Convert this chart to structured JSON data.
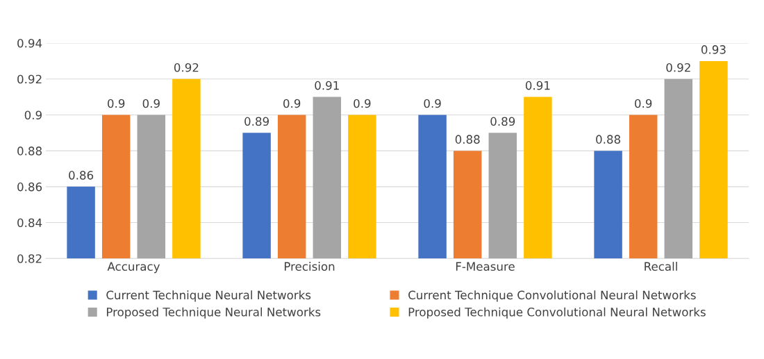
{
  "chart_data": {
    "type": "bar",
    "categories": [
      "Accuracy",
      "Precision",
      "F-Measure",
      "Recall"
    ],
    "series": [
      {
        "name": "Current Technique Neural Networks",
        "color": "#4472c4",
        "values": [
          0.86,
          0.89,
          0.9,
          0.88
        ]
      },
      {
        "name": "Current Technique Convolutional Neural Networks",
        "color": "#ed7d31",
        "values": [
          0.9,
          0.9,
          0.88,
          0.9
        ]
      },
      {
        "name": "Proposed Technique Neural Networks",
        "color": "#a5a5a5",
        "values": [
          0.9,
          0.91,
          0.89,
          0.92
        ]
      },
      {
        "name": "Proposed Technique Convolutional Neural Networks",
        "color": "#ffc000",
        "values": [
          0.92,
          0.9,
          0.91,
          0.93
        ]
      }
    ],
    "ylim": [
      0.82,
      0.94
    ],
    "yticks": [
      0.82,
      0.84,
      0.86,
      0.88,
      0.9,
      0.92,
      0.94
    ],
    "grid": "y",
    "legend": "bottom",
    "data_labels": true
  }
}
